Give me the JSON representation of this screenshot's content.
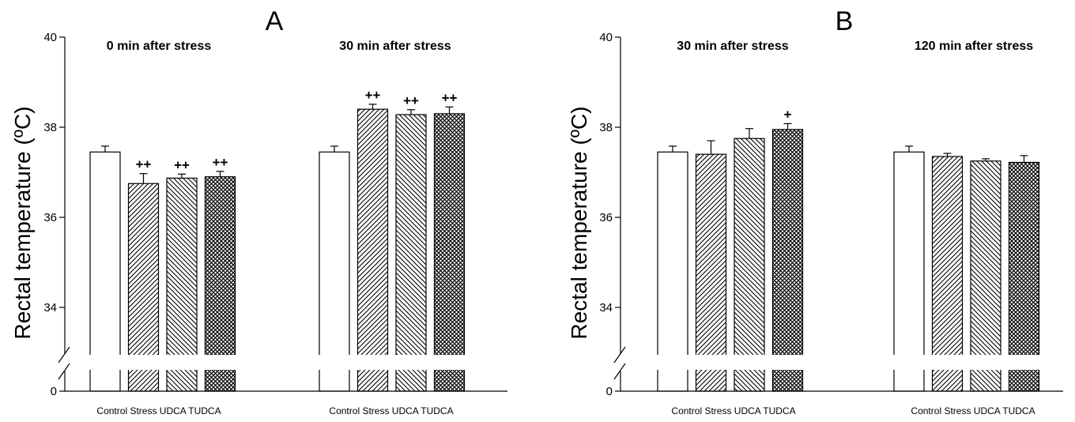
{
  "chart_data": [
    {
      "type": "bar",
      "panel_label": "A",
      "ylabel": "Rectal temperature (ºC)",
      "ylim": [
        33,
        40
      ],
      "axis_break": true,
      "y_ticks": [
        "0",
        "34",
        "36",
        "38",
        "40"
      ],
      "categories": [
        "Control",
        "Stress",
        "UDCA",
        "TUDCA"
      ],
      "legend": "none",
      "grid": false,
      "groups": [
        {
          "title": "0 min after stress",
          "values": [
            37.45,
            36.75,
            36.87,
            36.9
          ],
          "errors": [
            0.13,
            0.22,
            0.09,
            0.12
          ],
          "annotations": [
            "",
            "++",
            "++",
            "++"
          ]
        },
        {
          "title": "30 min after stress",
          "values": [
            37.45,
            38.4,
            38.28,
            38.3
          ],
          "errors": [
            0.13,
            0.11,
            0.11,
            0.15
          ],
          "annotations": [
            "",
            "++",
            "++",
            "++"
          ]
        }
      ]
    },
    {
      "type": "bar",
      "panel_label": "B",
      "ylabel": "Rectal temperature (ºC)",
      "ylim": [
        33,
        40
      ],
      "axis_break": true,
      "y_ticks": [
        "0",
        "34",
        "36",
        "38",
        "40"
      ],
      "categories": [
        "Control",
        "Stress",
        "UDCA",
        "TUDCA"
      ],
      "legend": "none",
      "grid": false,
      "groups": [
        {
          "title": "30 min after stress",
          "values": [
            37.45,
            37.4,
            37.75,
            37.95
          ],
          "errors": [
            0.13,
            0.3,
            0.22,
            0.13
          ],
          "annotations": [
            "",
            "",
            "",
            "+"
          ]
        },
        {
          "title": "120 min after stress",
          "values": [
            37.45,
            37.35,
            37.25,
            37.22
          ],
          "errors": [
            0.13,
            0.07,
            0.05,
            0.15
          ],
          "annotations": [
            "",
            "",
            "",
            ""
          ]
        }
      ]
    }
  ]
}
